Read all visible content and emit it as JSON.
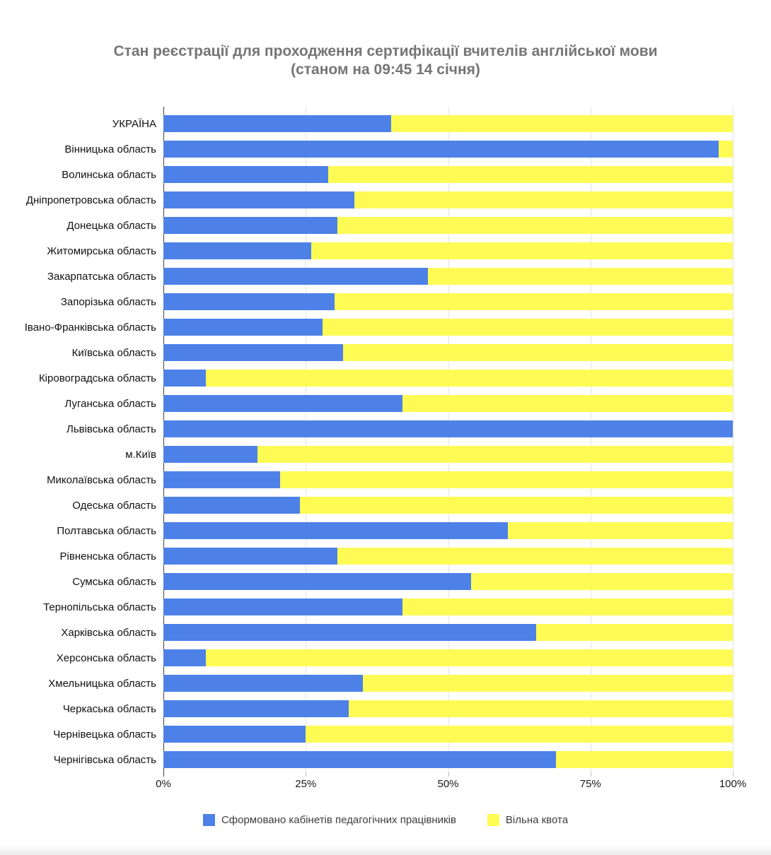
{
  "title": {
    "line1": "Стан реєстрації для проходження сертифікації вчителів англійської мови",
    "line2": "(станом на 09:45 14 січня)"
  },
  "colors": {
    "registered_blue": "#4d81e8",
    "free_quota_yellow": "#fffb55",
    "title_gray": "#757575"
  },
  "legend": [
    {
      "label": "Сформовано кабінетів педагогічних працівників",
      "color": "#4d81e8"
    },
    {
      "label": "Вільна квота",
      "color": "#fffb55"
    }
  ],
  "chart_data": {
    "type": "bar",
    "orientation": "horizontal",
    "stacked": true,
    "title": "Стан реєстрації для проходження сертифікації вчителів англійської мови (станом на 09:45 14 січня)",
    "xlabel": "",
    "ylabel": "",
    "xlim": [
      0,
      100
    ],
    "x_ticks": [
      {
        "label": "0%",
        "value": 0
      },
      {
        "label": "25%",
        "value": 25
      },
      {
        "label": "50%",
        "value": 50
      },
      {
        "label": "75%",
        "value": 75
      },
      {
        "label": "100%",
        "value": 100
      }
    ],
    "grid": true,
    "legend_position": "bottom",
    "categories": [
      "УКРАЇНА",
      "Вінницька область",
      "Волинська область",
      "Дніпропетровська область",
      "Донецька область",
      "Житомирська область",
      "Закарпатська область",
      "Запорізька область",
      "Івано-Франківська область",
      "Київська область",
      "Кіровоградська область",
      "Луганська область",
      "Львівська область",
      "м.Київ",
      "Миколаївська область",
      "Одеська область",
      "Полтавська область",
      "Рівненська область",
      "Сумська область",
      "Тернопільська область",
      "Харківська область",
      "Херсонська область",
      "Хмельницька область",
      "Черкаська область",
      "Чернівецька область",
      "Чернігівська область"
    ],
    "series": [
      {
        "name": "Сформовано кабінетів педагогічних працівників",
        "color": "#4d81e8",
        "values": [
          40,
          97.5,
          29,
          33.5,
          30.5,
          26,
          46.5,
          30,
          28,
          31.5,
          7.5,
          42,
          100,
          16.5,
          20.5,
          24,
          60.5,
          30.5,
          54,
          42,
          65.5,
          7.5,
          35,
          32.5,
          25,
          69
        ]
      },
      {
        "name": "Вільна квота",
        "color": "#fffb55",
        "values": [
          60,
          2.5,
          71,
          66.5,
          69.5,
          74,
          53.5,
          70,
          72,
          68.5,
          92.5,
          58,
          0,
          83.5,
          79.5,
          76,
          39.5,
          69.5,
          46,
          58,
          34.5,
          92.5,
          65,
          67.5,
          75,
          31
        ]
      }
    ]
  }
}
